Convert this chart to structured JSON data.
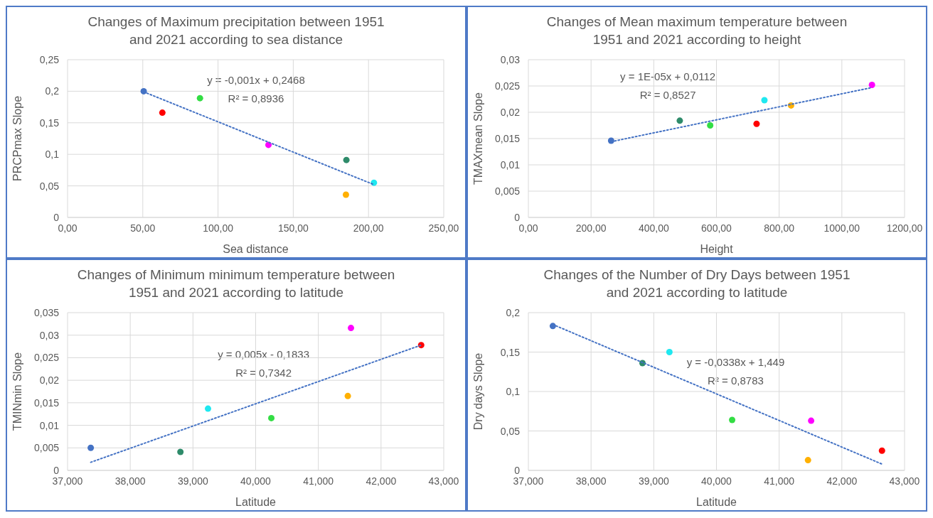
{
  "chart_data": [
    {
      "type": "scatter",
      "title": "Changes of Maximum precipitation between 1951 and 2021 according to sea distance",
      "xlabel": "Sea distance",
      "ylabel": "PRCPmax Slope",
      "grid": true,
      "marker": "circle",
      "xlim": [
        0,
        250
      ],
      "xticks": [
        {
          "value": 0,
          "label": "0,00"
        },
        {
          "value": 50,
          "label": "50,00"
        },
        {
          "value": 100,
          "label": "100,00"
        },
        {
          "value": 150,
          "label": "150,00"
        },
        {
          "value": 200,
          "label": "200,00"
        },
        {
          "value": 250,
          "label": "250,00"
        }
      ],
      "ylim": [
        0,
        0.25
      ],
      "yticks": [
        {
          "value": 0,
          "label": "0"
        },
        {
          "value": 0.05,
          "label": "0,05"
        },
        {
          "value": 0.1,
          "label": "0,1"
        },
        {
          "value": 0.15,
          "label": "0,15"
        },
        {
          "value": 0.2,
          "label": "0,2"
        },
        {
          "value": 0.25,
          "label": "0,25"
        }
      ],
      "series": [
        {
          "type": "scatter",
          "x": [
            50.6,
            63,
            88,
            133.5,
            185.3,
            203.6,
            185
          ],
          "values": [
            0.2,
            0.166,
            0.189,
            0.115,
            0.091,
            0.055,
            0.036
          ],
          "colors": [
            "#4472c4",
            "#ff0000",
            "#33dd44",
            "#ff00ff",
            "#2e8b6a",
            "#1fe8f0",
            "#ffb000"
          ]
        },
        {
          "type": "line",
          "x": [
            50.6,
            203.6
          ],
          "values": [
            0.199,
            0.052
          ],
          "color": "#4472c4",
          "line_style": "dotted",
          "marker": "none"
        }
      ],
      "annotations": [
        "y = -0,001x + 0,2468",
        "R² = 0,8936"
      ]
    },
    {
      "type": "scatter",
      "title": "Changes of Mean maximum temperature between 1951 and 2021 according to height",
      "xlabel": "Height",
      "ylabel": "TMAXmean Slope",
      "grid": true,
      "marker": "circle",
      "xlim": [
        0,
        1200
      ],
      "xticks": [
        {
          "value": 0,
          "label": "0,00"
        },
        {
          "value": 200,
          "label": "200,00"
        },
        {
          "value": 400,
          "label": "400,00"
        },
        {
          "value": 600,
          "label": "600,00"
        },
        {
          "value": 800,
          "label": "800,00"
        },
        {
          "value": 1000,
          "label": "1000,00"
        },
        {
          "value": 1200,
          "label": "1200,00"
        }
      ],
      "ylim": [
        0,
        0.03
      ],
      "yticks": [
        {
          "value": 0,
          "label": "0"
        },
        {
          "value": 0.005,
          "label": "0,005"
        },
        {
          "value": 0.01,
          "label": "0,01"
        },
        {
          "value": 0.015,
          "label": "0,015"
        },
        {
          "value": 0.02,
          "label": "0,02"
        },
        {
          "value": 0.025,
          "label": "0,025"
        },
        {
          "value": 0.03,
          "label": "0,03"
        }
      ],
      "series": [
        {
          "type": "scatter",
          "x": [
            264,
            483,
            580,
            728,
            753,
            838,
            1096
          ],
          "values": [
            0.0146,
            0.0184,
            0.0175,
            0.0178,
            0.0223,
            0.0213,
            0.0252
          ],
          "colors": [
            "#4472c4",
            "#2e8b6a",
            "#33dd44",
            "#ff0000",
            "#1fe8f0",
            "#ffb000",
            "#ff00ff"
          ]
        },
        {
          "type": "line",
          "x": [
            264,
            1096
          ],
          "values": [
            0.0144,
            0.0247
          ],
          "color": "#4472c4",
          "line_style": "dotted",
          "marker": "none"
        }
      ],
      "annotations": [
        "y = 1E-05x + 0,0112",
        "R² = 0,8527"
      ]
    },
    {
      "type": "scatter",
      "title": "Changes of Minimum minimum temperature between 1951 and 2021 according to latitude",
      "xlabel": "Latitude",
      "ylabel": "TMINmin Slope",
      "grid": true,
      "marker": "circle",
      "xlim": [
        37,
        43
      ],
      "xticks": [
        {
          "value": 37,
          "label": "37,000"
        },
        {
          "value": 38,
          "label": "38,000"
        },
        {
          "value": 39,
          "label": "39,000"
        },
        {
          "value": 40,
          "label": "40,000"
        },
        {
          "value": 41,
          "label": "41,000"
        },
        {
          "value": 42,
          "label": "42,000"
        },
        {
          "value": 43,
          "label": "43,000"
        }
      ],
      "ylim": [
        0,
        0.035
      ],
      "yticks": [
        {
          "value": 0,
          "label": "0"
        },
        {
          "value": 0.005,
          "label": "0,005"
        },
        {
          "value": 0.01,
          "label": "0,01"
        },
        {
          "value": 0.015,
          "label": "0,015"
        },
        {
          "value": 0.02,
          "label": "0,02"
        },
        {
          "value": 0.025,
          "label": "0,025"
        },
        {
          "value": 0.03,
          "label": "0,03"
        },
        {
          "value": 0.035,
          "label": "0,035"
        }
      ],
      "series": [
        {
          "type": "scatter",
          "x": [
            37.37,
            38.8,
            39.24,
            40.25,
            41.47,
            41.52,
            42.64
          ],
          "values": [
            0.005,
            0.0041,
            0.0137,
            0.0116,
            0.0165,
            0.0316,
            0.0278
          ],
          "colors": [
            "#4472c4",
            "#2e8b6a",
            "#1fe8f0",
            "#33dd44",
            "#ffb000",
            "#ff00ff",
            "#ff0000"
          ]
        },
        {
          "type": "line",
          "x": [
            37.37,
            42.64
          ],
          "values": [
            0.0018,
            0.0278
          ],
          "color": "#4472c4",
          "line_style": "dotted",
          "marker": "none"
        }
      ],
      "annotations": [
        "y = 0,005x - 0,1833",
        "R² = 0,7342"
      ]
    },
    {
      "type": "scatter",
      "title": "Changes of the Number of Dry Days between 1951 and 2021 according to latitude",
      "xlabel": "Latitude",
      "ylabel": "Dry days Slope",
      "grid": true,
      "marker": "circle",
      "xlim": [
        37,
        43
      ],
      "xticks": [
        {
          "value": 37,
          "label": "37,000"
        },
        {
          "value": 38,
          "label": "38,000"
        },
        {
          "value": 39,
          "label": "39,000"
        },
        {
          "value": 40,
          "label": "40,000"
        },
        {
          "value": 41,
          "label": "41,000"
        },
        {
          "value": 42,
          "label": "42,000"
        },
        {
          "value": 43,
          "label": "43,000"
        }
      ],
      "ylim": [
        0,
        0.2
      ],
      "yticks": [
        {
          "value": 0,
          "label": "0"
        },
        {
          "value": 0.05,
          "label": "0,05"
        },
        {
          "value": 0.1,
          "label": "0,1"
        },
        {
          "value": 0.15,
          "label": "0,15"
        },
        {
          "value": 0.2,
          "label": "0,2"
        }
      ],
      "series": [
        {
          "type": "scatter",
          "x": [
            37.39,
            38.82,
            39.25,
            40.25,
            41.46,
            41.51,
            42.64
          ],
          "values": [
            0.183,
            0.136,
            0.15,
            0.064,
            0.013,
            0.063,
            0.025
          ],
          "colors": [
            "#4472c4",
            "#2e8b6a",
            "#1fe8f0",
            "#33dd44",
            "#ffb000",
            "#ff00ff",
            "#ff0000"
          ]
        },
        {
          "type": "line",
          "x": [
            37.39,
            42.64
          ],
          "values": [
            0.185,
            0.008
          ],
          "color": "#4472c4",
          "line_style": "dotted",
          "marker": "none"
        }
      ],
      "annotations": [
        "y = -0,0338x + 1,449",
        "R² = 0,8783"
      ]
    }
  ]
}
